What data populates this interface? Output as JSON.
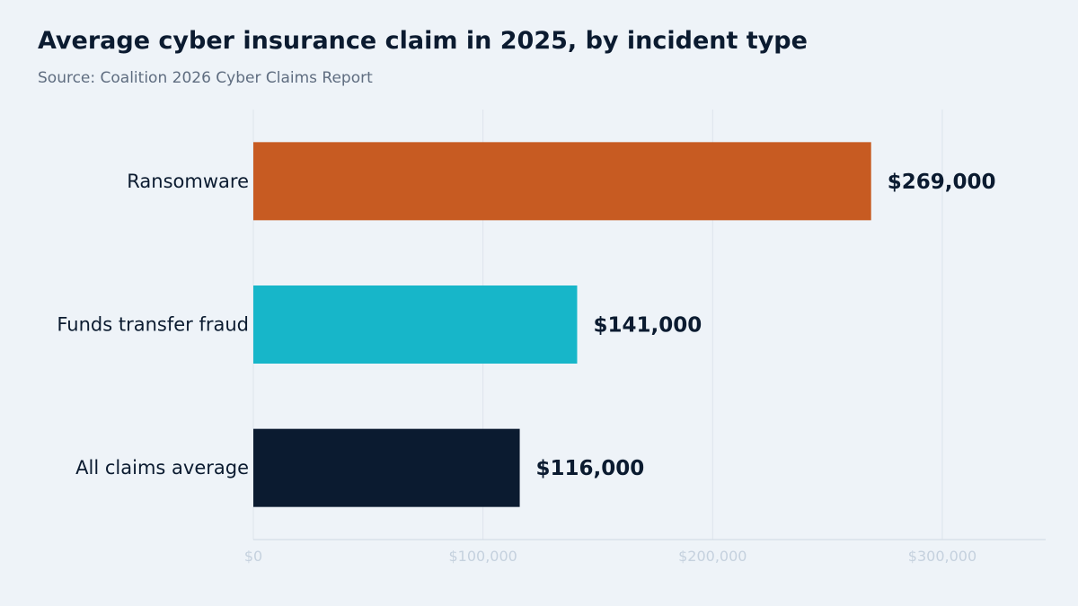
{
  "title": "Average cyber insurance claim in 2025, by incident type",
  "subtitle": "Source: Coalition 2026 Cyber Claims Report",
  "chart_data": {
    "type": "bar",
    "orientation": "horizontal",
    "title": "Average cyber insurance claim in 2025, by incident type",
    "subtitle": "Source: Coalition 2026 Cyber Claims Report",
    "categories": [
      "Ransomware",
      "Funds transfer fraud",
      "All claims average"
    ],
    "values": [
      269000,
      141000,
      116000
    ],
    "value_labels": [
      "$269,000",
      "$141,000",
      "$116,000"
    ],
    "colors": [
      "#c75b22",
      "#17b6c9",
      "#0b1b30"
    ],
    "xlabel": "",
    "ylabel": "",
    "xlim": [
      0,
      345000
    ],
    "xticks": [
      0,
      100000,
      200000,
      300000
    ],
    "xtick_labels": [
      "$0",
      "$100,000",
      "$200,000",
      "$300,000"
    ],
    "grid": true,
    "legend": "none"
  }
}
